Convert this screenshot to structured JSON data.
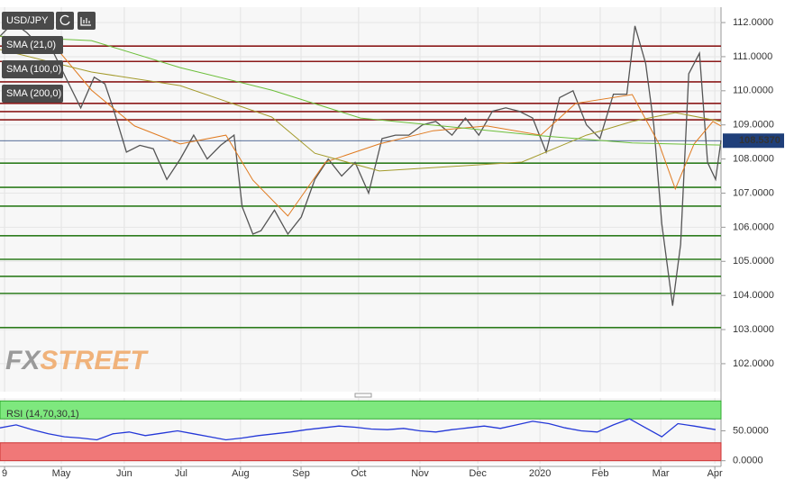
{
  "chart_data": [
    {
      "type": "line",
      "xlim": [
        0,
        268
      ],
      "ylim": [
        101.18,
        112.45
      ],
      "xticks": [
        {
          "value": 1.7,
          "label": "9"
        },
        {
          "value": 22.8,
          "label": "May"
        },
        {
          "value": 46.2,
          "label": "Jun"
        },
        {
          "value": 67.3,
          "label": "Jul"
        },
        {
          "value": 89.4,
          "label": "Aug"
        },
        {
          "value": 111.9,
          "label": "Sep"
        },
        {
          "value": 133.3,
          "label": "Oct"
        },
        {
          "value": 156.1,
          "label": "Nov"
        },
        {
          "value": 177.6,
          "label": "Dec"
        },
        {
          "value": 200.7,
          "label": "2020"
        },
        {
          "value": 223.1,
          "label": "Feb"
        },
        {
          "value": 245.6,
          "label": "Mar"
        },
        {
          "value": 265.7,
          "label": "Apr"
        }
      ],
      "yticks": [
        {
          "value": 102,
          "label": "102.0000"
        },
        {
          "value": 103,
          "label": "103.0000"
        },
        {
          "value": 104,
          "label": "104.0000"
        },
        {
          "value": 105,
          "label": "105.0000"
        },
        {
          "value": 106,
          "label": "106.0000"
        },
        {
          "value": 107,
          "label": "107.0000"
        },
        {
          "value": 108,
          "label": "108.0000"
        },
        {
          "value": 109,
          "label": "109.0000"
        },
        {
          "value": 110,
          "label": "110.0000"
        },
        {
          "value": 111,
          "label": "111.0000"
        },
        {
          "value": 112,
          "label": "112.0000"
        }
      ],
      "grid": true,
      "series": [
        {
          "name": "USD/JPY",
          "color": "#555555",
          "x": [
            0,
            5,
            10,
            15,
            20,
            25,
            30,
            35,
            39,
            42,
            47,
            52,
            57,
            62,
            67,
            72,
            77,
            82,
            87,
            90,
            94,
            97,
            102,
            107,
            112,
            117,
            122,
            127,
            132,
            137,
            142,
            147,
            152,
            157,
            162,
            168,
            173,
            178,
            183,
            188,
            193,
            198,
            203,
            208,
            213,
            218,
            223,
            228,
            233,
            236,
            240,
            243,
            246,
            250,
            253,
            256,
            260,
            263,
            266,
            268
          ],
          "values": [
            111.6,
            112.0,
            111.7,
            111.3,
            111.1,
            110.3,
            109.5,
            110.4,
            110.2,
            109.5,
            108.2,
            108.4,
            108.3,
            107.4,
            108.0,
            108.7,
            108.0,
            108.4,
            108.7,
            106.6,
            105.8,
            105.9,
            106.5,
            105.8,
            106.3,
            107.4,
            108.0,
            107.5,
            107.9,
            107.0,
            108.6,
            108.7,
            108.7,
            109.0,
            109.1,
            108.7,
            109.2,
            108.7,
            109.4,
            109.5,
            109.4,
            109.2,
            108.2,
            109.8,
            110.0,
            109.0,
            108.6,
            109.9,
            109.9,
            111.9,
            110.8,
            109.0,
            106.1,
            103.7,
            105.5,
            110.5,
            111.1,
            107.9,
            107.4,
            108.54
          ]
        },
        {
          "name": "SMA (21,0)",
          "color": "#e07a1f",
          "x": [
            0,
            20,
            34,
            50,
            67,
            84,
            94,
            107,
            121,
            141,
            161,
            181,
            201,
            214,
            235,
            245,
            251,
            258,
            265,
            268
          ],
          "values": [
            111.6,
            111.34,
            110.02,
            108.97,
            108.44,
            108.7,
            107.38,
            106.33,
            107.91,
            108.44,
            108.83,
            108.97,
            108.7,
            109.63,
            109.89,
            108.44,
            107.12,
            108.44,
            109.1,
            108.97
          ]
        },
        {
          "name": "SMA (100,0)",
          "color": "#a39a2a",
          "x": [
            0,
            34,
            67,
            101,
            117,
            141,
            168,
            194,
            218,
            235,
            251,
            268
          ],
          "values": [
            111.21,
            110.55,
            110.15,
            109.23,
            108.17,
            107.65,
            107.78,
            107.91,
            108.7,
            109.1,
            109.36,
            109.1
          ]
        },
        {
          "name": "SMA (200,0)",
          "color": "#6cbf3a",
          "x": [
            0,
            34,
            67,
            101,
            134,
            168,
            201,
            235,
            268
          ],
          "values": [
            111.6,
            111.47,
            110.68,
            110.02,
            109.2,
            108.94,
            108.68,
            108.47,
            108.41
          ]
        }
      ],
      "resistance_levels": {
        "color": "#8b1a1a",
        "values": [
          111.31,
          110.86,
          110.26,
          109.63,
          109.39,
          109.15
        ]
      },
      "support_levels": {
        "color": "#2e7d1e",
        "values": [
          107.88,
          107.17,
          106.62,
          105.75,
          105.06,
          104.56,
          104.06,
          103.06
        ]
      },
      "last_price": {
        "value": 108.537,
        "label": "108.5370",
        "color": "#1f3f7a"
      },
      "watermark": [
        "FX",
        "STREET"
      ]
    },
    {
      "type": "line",
      "xlim": [
        0,
        268
      ],
      "ylim": [
        -5,
        105
      ],
      "yticks": [
        {
          "value": 0,
          "label": "0.0000"
        },
        {
          "value": 50,
          "label": "50.0000"
        }
      ],
      "upper_band": [
        70,
        100
      ],
      "lower_band": [
        0,
        30
      ],
      "series": [
        {
          "name": "RSI (14,70,30,1)",
          "color": "#2438d8",
          "x": [
            0,
            6,
            12,
            18,
            24,
            30,
            36,
            42,
            48,
            54,
            60,
            66,
            72,
            78,
            84,
            90,
            96,
            102,
            108,
            114,
            120,
            126,
            132,
            138,
            144,
            150,
            156,
            162,
            168,
            174,
            180,
            186,
            192,
            198,
            204,
            210,
            216,
            222,
            228,
            234,
            240,
            246,
            252,
            258,
            266
          ],
          "values": [
            55,
            60,
            52,
            45,
            40,
            38,
            35,
            45,
            48,
            42,
            46,
            50,
            45,
            40,
            35,
            38,
            42,
            45,
            48,
            52,
            55,
            58,
            56,
            53,
            52,
            54,
            50,
            48,
            52,
            55,
            58,
            54,
            60,
            66,
            62,
            55,
            50,
            48,
            60,
            70,
            55,
            40,
            62,
            58,
            52
          ]
        }
      ]
    }
  ]
}
